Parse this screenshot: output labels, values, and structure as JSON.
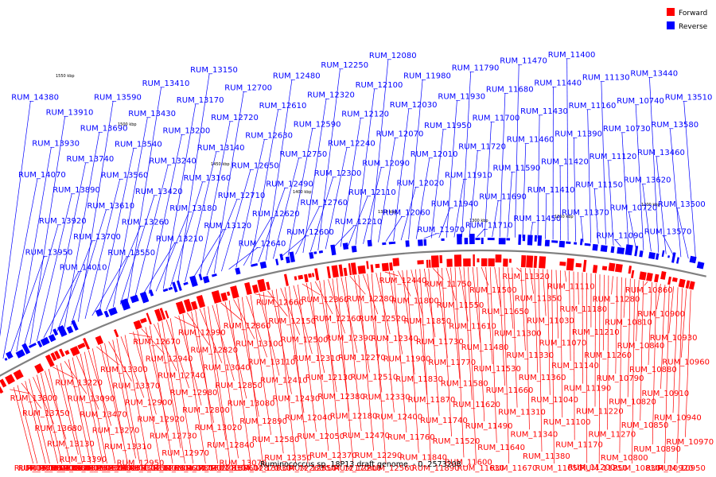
{
  "caption": "Ruminococcus sp. 18P13 draft genome. - 0..2573208",
  "legend": [
    {
      "label": "Forward",
      "color": "#ff0000"
    },
    {
      "label": "Reverse",
      "color": "#0000ff"
    }
  ],
  "scale_ticks": [
    "1550 kbp",
    "1500 kbp",
    "1450 kbp",
    "1400 kbp",
    "1350 kbp",
    "1300 kbp",
    "1250 kbp",
    "1200 kbp"
  ],
  "colors": {
    "forward": "#ff0000",
    "reverse": "#0000ff",
    "backbone": "#808080"
  },
  "reverse_labels": [
    "RUM_14380",
    "RUM_14070",
    "RUM_13950",
    "RUM_13930",
    "RUM_13920",
    "RUM_13910",
    "RUM_13890",
    "RUM_14010",
    "RUM_13740",
    "RUM_13700",
    "RUM_13690",
    "RUM_13610",
    "RUM_13590",
    "RUM_13560",
    "RUM_13550",
    "RUM_13540",
    "RUM_13260",
    "RUM_13430",
    "RUM_13420",
    "RUM_13410",
    "RUM_13240",
    "RUM_13210",
    "RUM_13200",
    "RUM_13180",
    "RUM_13170",
    "RUM_13160",
    "RUM_13150",
    "RUM_13140",
    "RUM_13120",
    "RUM_12720",
    "RUM_12710",
    "RUM_12700",
    "RUM_12650",
    "RUM_12640",
    "RUM_12630",
    "RUM_12620",
    "RUM_12610",
    "RUM_12490",
    "RUM_12480",
    "RUM_12750",
    "RUM_12600",
    "RUM_12590",
    "RUM_12760",
    "RUM_12320",
    "RUM_12300",
    "RUM_12250",
    "RUM_12240",
    "RUM_12210",
    "RUM_12120",
    "RUM_12110",
    "RUM_12100",
    "RUM_12090",
    "RUM_12080",
    "RUM_12070",
    "RUM_12060",
    "RUM_12030",
    "RUM_12020",
    "RUM_11980",
    "RUM_12010",
    "RUM_11970",
    "RUM_11950",
    "RUM_11940",
    "RUM_11930",
    "RUM_11910",
    "RUM_11790",
    "RUM_11720",
    "RUM_11710",
    "RUM_11700",
    "RUM_11690",
    "RUM_11680",
    "RUM_11590",
    "RUM_11470",
    "RUM_11460",
    "RUM_11450",
    "RUM_11430",
    "RUM_11410",
    "RUM_11440",
    "RUM_11420",
    "RUM_11400",
    "RUM_11390",
    "RUM_11370",
    "RUM_11160",
    "RUM_11150",
    "RUM_11130",
    "RUM_11120",
    "RUM_11090",
    "RUM_10730",
    "RUM_10720",
    "RUM_10740",
    "RUM_13620",
    "RUM_13440",
    "RUM_13460",
    "RUM_13570",
    "RUM_13580",
    "RUM_13500",
    "RUM_13510"
  ],
  "forward_labels": [
    "RUM_13800",
    "RUM_13710",
    "RUM_13660",
    "RUM_13750",
    "RUM_13530",
    "RUM_13400",
    "RUM_13680",
    "RUM_13350",
    "RUM_13360",
    "RUM_13130",
    "RUM_13380",
    "RUM_13220",
    "RUM_13390",
    "RUM_13290",
    "RUM_13090",
    "RUM_13450",
    "RUM_13230",
    "RUM_13470",
    "RUM_13250",
    "RUM_13480",
    "RUM_13270",
    "RUM_13490",
    "RUM_13300",
    "RUM_13310",
    "RUM_13330",
    "RUM_13370",
    "RUM_12950",
    "RUM_12810",
    "RUM_12900",
    "RUM_12910",
    "RUM_12670",
    "RUM_12920",
    "RUM_12690",
    "RUM_12940",
    "RUM_12730",
    "RUM_12960",
    "RUM_12740",
    "RUM_12970",
    "RUM_12780",
    "RUM_12980",
    "RUM_12790",
    "RUM_12990",
    "RUM_12800",
    "RUM_13010",
    "RUM_12820",
    "RUM_13020",
    "RUM_12830",
    "RUM_13040",
    "RUM_12840",
    "RUM_13060",
    "RUM_12850",
    "RUM_13070",
    "RUM_12860",
    "RUM_13080",
    "RUM_12870",
    "RUM_13100",
    "RUM_12890",
    "RUM_13030",
    "RUM_13110",
    "RUM_12580",
    "RUM_12660",
    "RUM_12410",
    "RUM_12350",
    "RUM_12150",
    "RUM_12430",
    "RUM_12260",
    "RUM_12500",
    "RUM_12040",
    "RUM_12550",
    "RUM_12310",
    "RUM_12050",
    "RUM_12360",
    "RUM_12130",
    "RUM_12370",
    "RUM_12160",
    "RUM_12380",
    "RUM_12170",
    "RUM_12390",
    "RUM_12180",
    "RUM_12200",
    "RUM_12270",
    "RUM_12470",
    "RUM_12280",
    "RUM_12510",
    "RUM_12290",
    "RUM_12520",
    "RUM_12330",
    "RUM_12560",
    "RUM_12340",
    "RUM_12400",
    "RUM_12440",
    "RUM_11900",
    "RUM_11760",
    "RUM_11800",
    "RUM_11830",
    "RUM_11840",
    "RUM_11850",
    "RUM_11870",
    "RUM_11890",
    "RUM_11730",
    "RUM_11740",
    "RUM_11750",
    "RUM_11770",
    "RUM_11520",
    "RUM_11550",
    "RUM_11580",
    "RUM_11600",
    "RUM_11610",
    "RUM_11620",
    "RUM_11630",
    "RUM_11480",
    "RUM_11490",
    "RUM_11500",
    "RUM_11530",
    "RUM_11640",
    "RUM_11650",
    "RUM_11660",
    "RUM_11670",
    "RUM_11300",
    "RUM_11310",
    "RUM_11320",
    "RUM_11330",
    "RUM_11340",
    "RUM_11350",
    "RUM_11360",
    "RUM_11380",
    "RUM_11030",
    "RUM_11040",
    "RUM_11050",
    "RUM_11070",
    "RUM_11100",
    "RUM_11110",
    "RUM_11140",
    "RUM_11170",
    "RUM_11180",
    "RUM_11190",
    "RUM_11200",
    "RUM_11210",
    "RUM_11220",
    "RUM_11250",
    "RUM_11260",
    "RUM_11270",
    "RUM_11280",
    "RUM_10790",
    "RUM_10800",
    "RUM_10810",
    "RUM_10820",
    "RUM_10830",
    "RUM_10840",
    "RUM_10850",
    "RUM_10860",
    "RUM_10880",
    "RUM_10890",
    "RUM_10900",
    "RUM_10910",
    "RUM_10920",
    "RUM_10930",
    "RUM_10940",
    "RUM_10950",
    "RUM_10960",
    "RUM_10970"
  ]
}
